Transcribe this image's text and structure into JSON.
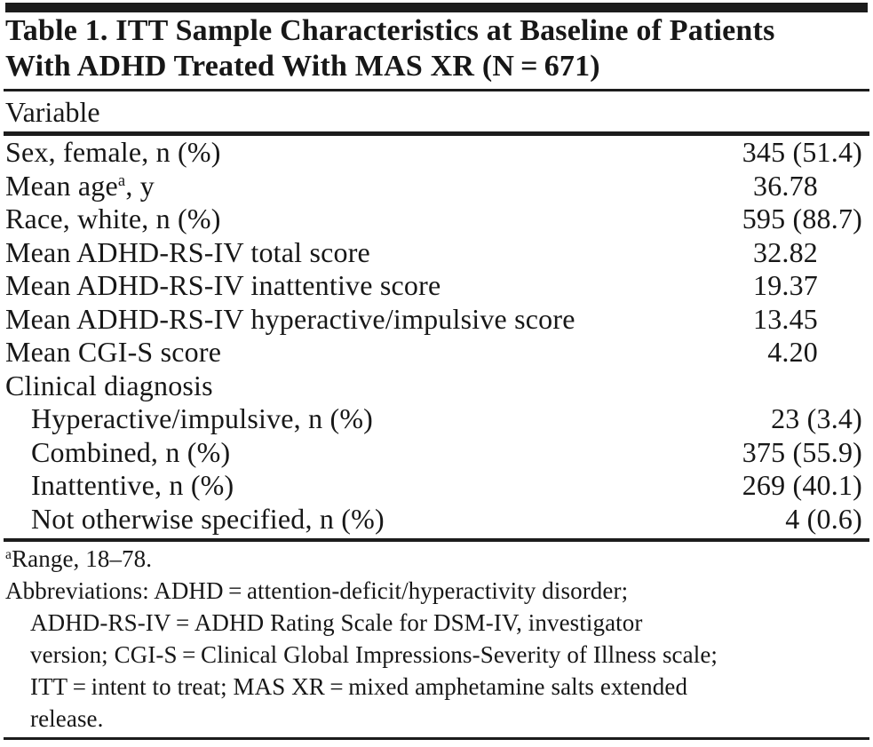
{
  "title": {
    "line1": "Table 1. ITT Sample Characteristics at Baseline of Patients",
    "line2": "With ADHD Treated With MAS XR (N = 671)"
  },
  "column_header": "Variable",
  "rows": [
    {
      "label": "Sex, female, n (%)",
      "value": "345 (51.4)",
      "indent": false
    },
    {
      "label": "Mean age",
      "sup": "a",
      "label2": ", y",
      "value": "36.78",
      "indent": false
    },
    {
      "label": "Race, white, n (%)",
      "value": "595 (88.7)",
      "indent": false
    },
    {
      "label": "Mean ADHD-RS-IV total score",
      "value": "32.82",
      "indent": false
    },
    {
      "label": "Mean ADHD-RS-IV inattentive score",
      "value": "19.37",
      "indent": false
    },
    {
      "label": "Mean ADHD-RS-IV hyperactive/impulsive score",
      "value": "13.45",
      "indent": false
    },
    {
      "label": "Mean CGI-S score",
      "value": "4.20",
      "indent": false
    },
    {
      "label": "Clinical diagnosis",
      "value": "",
      "indent": false
    },
    {
      "label": "Hyperactive/impulsive, n (%)",
      "value": "23 (3.4)",
      "indent": true
    },
    {
      "label": "Combined, n (%)",
      "value": "375 (55.9)",
      "indent": true
    },
    {
      "label": "Inattentive, n (%)",
      "value": "269 (40.1)",
      "indent": true
    },
    {
      "label": "Not otherwise specified, n (%)",
      "value": "4 (0.6)",
      "indent": true
    }
  ],
  "footnotes": {
    "range_sup": "a",
    "range_text": "Range, 18–78.",
    "abbrev_lines": [
      "Abbreviations: ADHD = attention-deficit/hyperactivity disorder;",
      "ADHD-RS-IV = ADHD Rating Scale for DSM-IV, investigator",
      "version; CGI-S = Clinical Global Impressions-Severity of Illness scale;",
      "ITT = intent to treat; MAS XR = mixed amphetamine salts extended",
      "release."
    ]
  }
}
